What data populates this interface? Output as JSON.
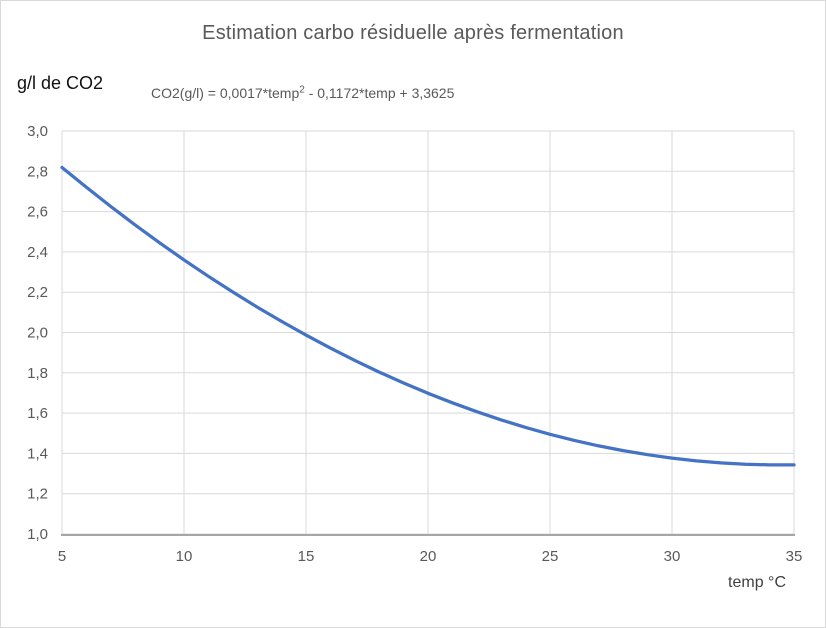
{
  "page": {
    "background": "#FFFFFF",
    "border_color": "#D9D9D9"
  },
  "header": {
    "title": "Estimation carbo résiduelle après fermentation"
  },
  "formula": {
    "prefix": "CO2(g/l) = 0,0017*temp",
    "superscript": "2",
    "suffix": " - 0,1172*temp + 3,3625"
  },
  "axes": {
    "y_title": "g/l de CO2",
    "x_title": "temp °C"
  },
  "chart_data": {
    "type": "line",
    "title": "Estimation carbo résiduelle après fermentation",
    "xlabel": "temp °C",
    "ylabel": "g/l de CO2",
    "annotation": "CO2(g/l) = 0,0017*temp² - 0,1172*temp + 3,3625",
    "x": [
      5,
      6,
      7,
      8,
      9,
      10,
      11,
      12,
      13,
      14,
      15,
      16,
      17,
      18,
      19,
      20,
      21,
      22,
      23,
      24,
      25,
      26,
      27,
      28,
      29,
      30,
      31,
      32,
      33,
      34,
      35
    ],
    "series": [
      {
        "name": "CO2(g/l)",
        "values": [
          2.819,
          2.7205,
          2.6254,
          2.5337,
          2.4454,
          2.3605,
          2.279,
          2.2009,
          2.1262,
          2.0549,
          1.987,
          1.9225,
          1.8614,
          1.8037,
          1.7494,
          1.6985,
          1.651,
          1.6069,
          1.5662,
          1.5289,
          1.495,
          1.4645,
          1.4374,
          1.4137,
          1.3934,
          1.3765,
          1.363,
          1.3529,
          1.3462,
          1.3429,
          1.343
        ]
      }
    ],
    "xlim": [
      5,
      35
    ],
    "ylim": [
      1.0,
      3.0
    ],
    "x_ticks": [
      5,
      10,
      15,
      20,
      25,
      30,
      35
    ],
    "x_tick_labels": [
      "5",
      "10",
      "15",
      "20",
      "25",
      "30",
      "35"
    ],
    "y_ticks": [
      1.0,
      1.2,
      1.4,
      1.6,
      1.8,
      2.0,
      2.2,
      2.4,
      2.6,
      2.8,
      3.0
    ],
    "y_tick_labels": [
      "1,0",
      "1,2",
      "1,4",
      "1,6",
      "1,8",
      "2,0",
      "2,2",
      "2,4",
      "2,6",
      "2,8",
      "3,0"
    ],
    "grid": true,
    "legend": "none",
    "line_color": "#4472C4",
    "grid_color": "#D9D9D9",
    "axis_line_color": "#A6A6A6",
    "tick_label_color": "#595959"
  }
}
